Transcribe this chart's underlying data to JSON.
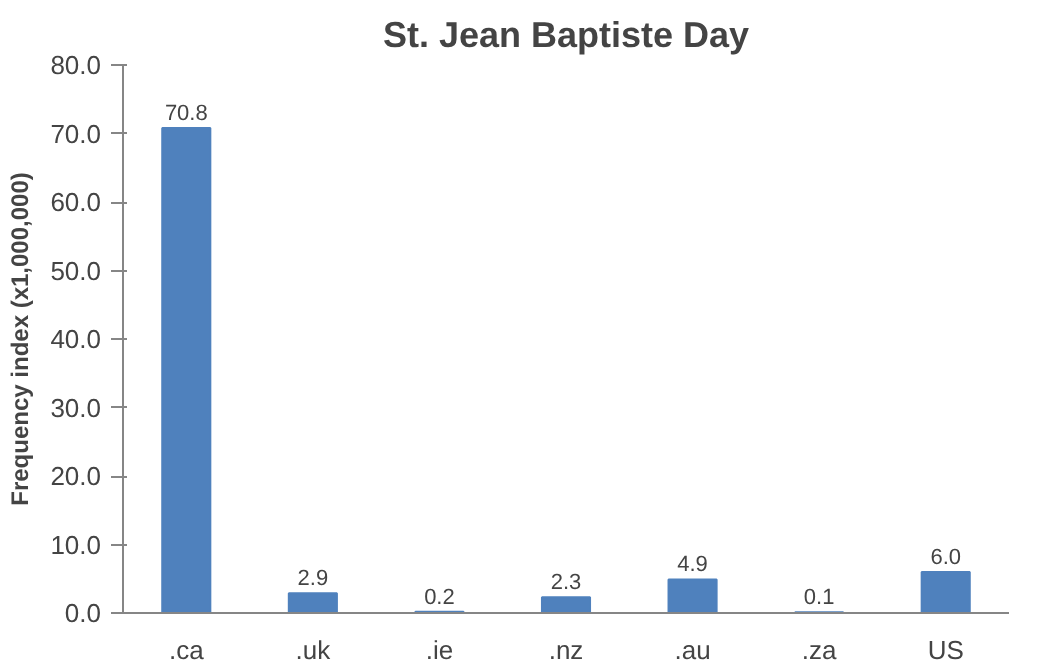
{
  "chart_data": {
    "type": "bar",
    "title": "St. Jean Baptiste Day",
    "ylabel": "Frequency index (x1,000,000)",
    "categories": [
      ".ca",
      ".uk",
      ".ie",
      ".nz",
      ".au",
      ".za",
      "US"
    ],
    "values": [
      70.8,
      2.9,
      0.2,
      2.3,
      4.9,
      0.1,
      6.0
    ],
    "value_labels": [
      "70.8",
      "2.9",
      "0.2",
      "2.3",
      "4.9",
      "0.1",
      "6.0"
    ],
    "color": "#4f81bd",
    "ylim": [
      0,
      80
    ],
    "yticks": [
      {
        "value": 0,
        "label": "0.0"
      },
      {
        "value": 10,
        "label": "10.0"
      },
      {
        "value": 20,
        "label": "20.0"
      },
      {
        "value": 30,
        "label": "30.0"
      },
      {
        "value": 40,
        "label": "40.0"
      },
      {
        "value": 50,
        "label": "50.0"
      },
      {
        "value": 60,
        "label": "60.0"
      },
      {
        "value": 70,
        "label": "70.0"
      },
      {
        "value": 80,
        "label": "80.0"
      }
    ],
    "grid": false
  }
}
